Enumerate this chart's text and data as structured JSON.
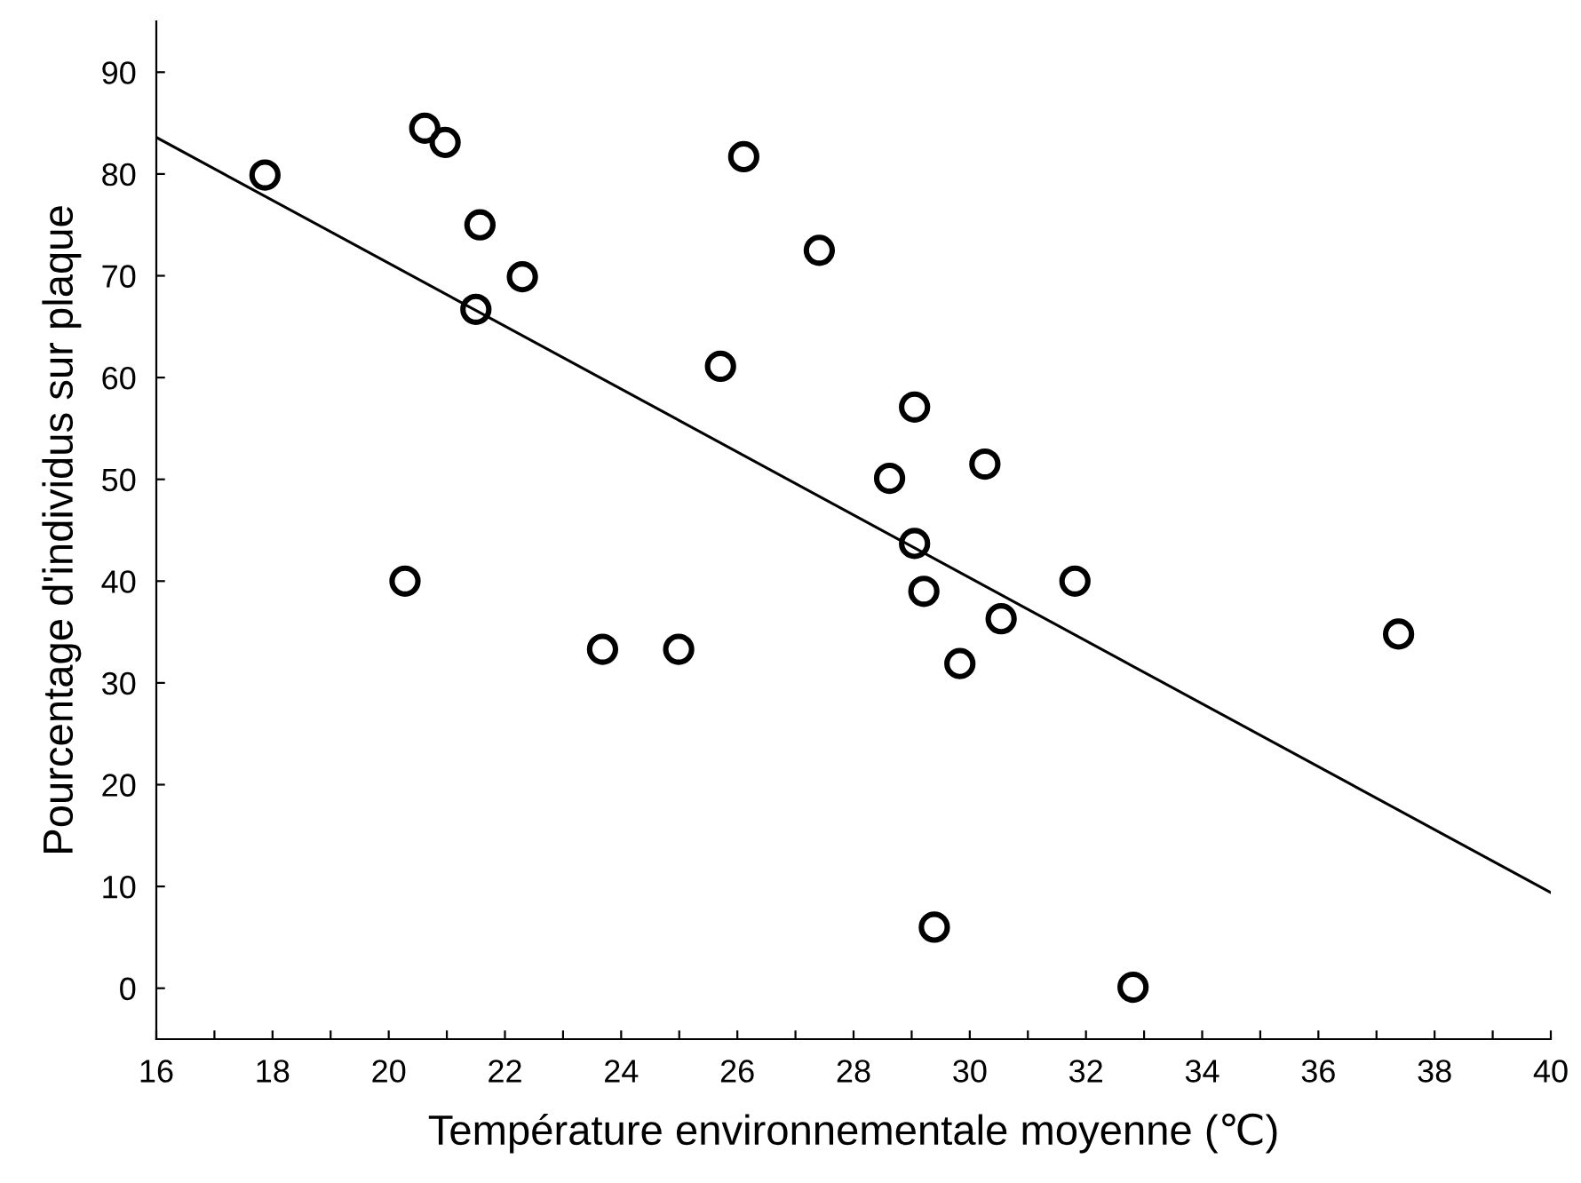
{
  "chart_data": {
    "type": "scatter",
    "xlabel": "Température environnementale moyenne (℃)",
    "ylabel": "Pourcentage d'individus sur plaque",
    "xlim": [
      16,
      40
    ],
    "ylim": [
      -5,
      95
    ],
    "xticks": [
      16,
      {
        "value": 17,
        "label": null
      },
      18,
      {
        "value": 19,
        "label": null
      },
      20,
      {
        "value": 21,
        "label": null
      },
      22,
      {
        "value": 23,
        "label": null
      },
      24,
      {
        "value": 25,
        "label": null
      },
      26,
      {
        "value": 27,
        "label": null
      },
      28,
      {
        "value": 29,
        "label": null
      },
      30,
      {
        "value": 31,
        "label": null
      },
      32,
      {
        "value": 33,
        "label": null
      },
      34,
      {
        "value": 35,
        "label": null
      },
      36,
      {
        "value": 37,
        "label": null
      },
      38,
      {
        "value": 39,
        "label": null
      },
      40
    ],
    "yticks": [
      0,
      10,
      20,
      30,
      40,
      50,
      60,
      70,
      80,
      90
    ],
    "grid": false,
    "marker": "circle",
    "series": [
      {
        "color": "#000000",
        "x": [
          17.87,
          20.62,
          20.97,
          21.57,
          22.3,
          21.5,
          26.11,
          27.41,
          25.71,
          20.28,
          23.68,
          24.99,
          29.05,
          28.62,
          30.26,
          29.05,
          29.21,
          30.54,
          29.83,
          31.81,
          37.38,
          29.39,
          32.81
        ],
        "values": [
          79.9,
          84.5,
          83.1,
          75.0,
          69.9,
          66.7,
          81.7,
          72.5,
          61.1,
          40.0,
          33.3,
          33.3,
          57.1,
          50.1,
          51.5,
          43.7,
          39.0,
          36.3,
          31.9,
          40.0,
          34.8,
          6.0,
          0.1
        ]
      },
      {
        "type": "line",
        "color": "#000000",
        "marker": "none",
        "line_style": "solid",
        "x": [
          16,
          40
        ],
        "values": [
          83.6,
          9.4
        ]
      }
    ]
  }
}
